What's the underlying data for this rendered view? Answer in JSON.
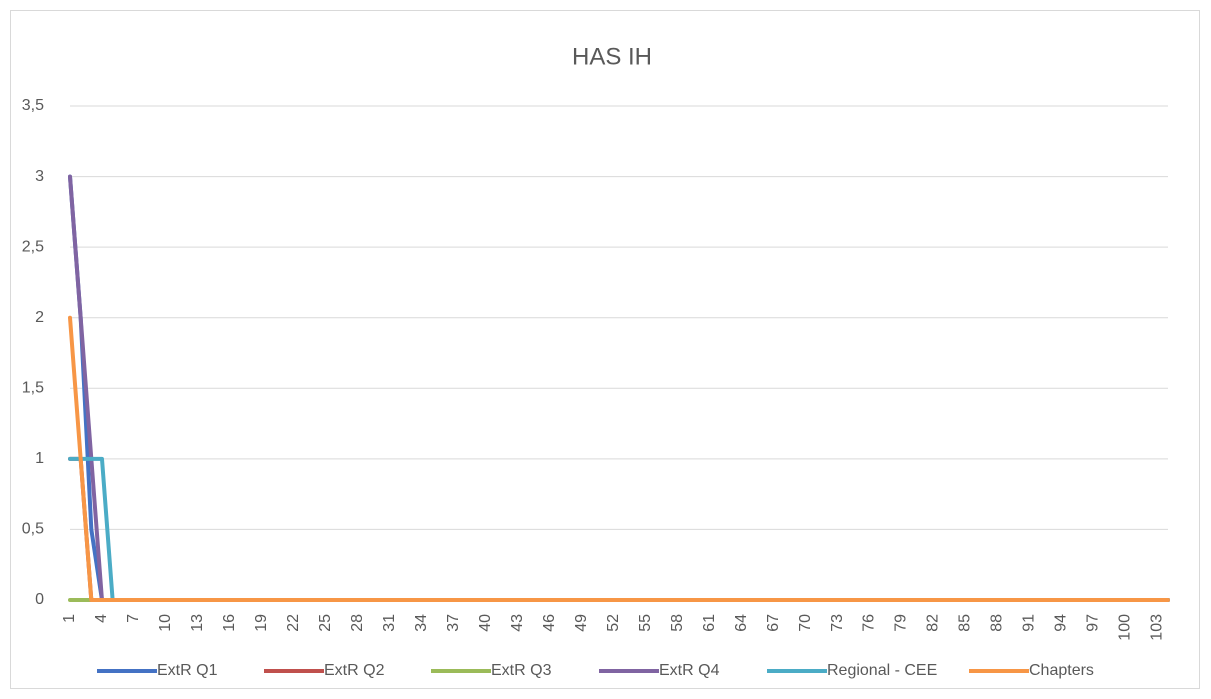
{
  "chart_data": {
    "type": "line",
    "title": "HAS IH",
    "categories": [
      "1",
      null,
      null,
      "4",
      null,
      null,
      "7",
      null,
      null,
      "10",
      null,
      null,
      "13",
      null,
      null,
      "16",
      null,
      null,
      "19",
      null,
      null,
      "22",
      null,
      null,
      "25",
      null,
      null,
      "28",
      null,
      null,
      "31",
      null,
      null,
      "34",
      null,
      null,
      "37",
      null,
      null,
      "40",
      null,
      null,
      "43",
      null,
      null,
      "46",
      null,
      null,
      "49",
      null,
      null,
      "52",
      null,
      null,
      "55",
      null,
      null,
      "58",
      null,
      null,
      "61",
      null,
      null,
      "64",
      null,
      null,
      "67",
      null,
      null,
      "70",
      null,
      null,
      "73",
      null,
      null,
      "76",
      null,
      null,
      "79",
      null,
      null,
      "82",
      null,
      null,
      "85",
      null,
      null,
      "88",
      null,
      null,
      "91",
      null,
      null,
      "94",
      null,
      null,
      "97",
      null,
      null,
      "100",
      null,
      null,
      "103",
      null
    ],
    "series": [
      {
        "name": "ExtR Q1",
        "color": "#4472c4",
        "values": [
          3,
          2,
          0.5,
          0,
          0,
          0,
          0,
          0,
          0,
          0,
          0,
          0,
          0,
          0,
          0,
          0,
          0,
          0,
          0,
          0,
          0,
          0,
          0,
          0,
          0,
          0,
          0,
          0,
          0,
          0,
          0,
          0,
          0,
          0,
          0,
          0,
          0,
          0,
          0,
          0,
          0,
          0,
          0,
          0,
          0,
          0,
          0,
          0,
          0,
          0,
          0,
          0,
          0,
          0,
          0,
          0,
          0,
          0,
          0,
          0,
          0,
          0,
          0,
          0,
          0,
          0,
          0,
          0,
          0,
          0,
          0,
          0,
          0,
          0,
          0,
          0,
          0,
          0,
          0,
          0,
          0,
          0,
          0,
          0,
          0,
          0,
          0,
          0,
          0,
          0,
          0,
          0,
          0,
          0,
          0,
          0,
          0,
          0,
          0,
          0,
          0,
          0,
          0,
          0
        ]
      },
      {
        "name": "ExtR Q2",
        "color": "#c0504d",
        "values": [
          1,
          1,
          0,
          0,
          0,
          0,
          0,
          0,
          0,
          0,
          0,
          0,
          0,
          0,
          0,
          0,
          0,
          0,
          0,
          0,
          0,
          0,
          0,
          0,
          0,
          0,
          0,
          0,
          0,
          0,
          0,
          0,
          0,
          0,
          0,
          0,
          0,
          0,
          0,
          0,
          0,
          0,
          0,
          0,
          0,
          0,
          0,
          0,
          0,
          0,
          0,
          0,
          0,
          0,
          0,
          0,
          0,
          0,
          0,
          0,
          0,
          0,
          0,
          0,
          0,
          0,
          0,
          0,
          0,
          0,
          0,
          0,
          0,
          0,
          0,
          0,
          0,
          0,
          0,
          0,
          0,
          0,
          0,
          0,
          0,
          0,
          0,
          0,
          0,
          0,
          0,
          0,
          0,
          0,
          0,
          0,
          0,
          0,
          0,
          0,
          0,
          0,
          0,
          0
        ]
      },
      {
        "name": "ExtR Q3",
        "color": "#9bbb59",
        "values": [
          0,
          0,
          0,
          0,
          0,
          0,
          0,
          0,
          0,
          0,
          0,
          0,
          0,
          0,
          0,
          0,
          0,
          0,
          0,
          0,
          0,
          0,
          0,
          0,
          0,
          0,
          0,
          0,
          0,
          0,
          0,
          0,
          0,
          0,
          0,
          0,
          0,
          0,
          0,
          0,
          0,
          0,
          0,
          0,
          0,
          0,
          0,
          0,
          0,
          0,
          0,
          0,
          0,
          0,
          0,
          0,
          0,
          0,
          0,
          0,
          0,
          0,
          0,
          0,
          0,
          0,
          0,
          0,
          0,
          0,
          0,
          0,
          0,
          0,
          0,
          0,
          0,
          0,
          0,
          0,
          0,
          0,
          0,
          0,
          0,
          0,
          0,
          0,
          0,
          0,
          0,
          0,
          0,
          0,
          0,
          0,
          0,
          0,
          0,
          0,
          0,
          0,
          0,
          0
        ]
      },
      {
        "name": "ExtR Q4",
        "color": "#8064a2",
        "values": [
          3,
          2,
          1,
          0,
          0,
          0,
          0,
          0,
          0,
          0,
          0,
          0,
          0,
          0,
          0,
          0,
          0,
          0,
          0,
          0,
          0,
          0,
          0,
          0,
          0,
          0,
          0,
          0,
          0,
          0,
          0,
          0,
          0,
          0,
          0,
          0,
          0,
          0,
          0,
          0,
          0,
          0,
          0,
          0,
          0,
          0,
          0,
          0,
          0,
          0,
          0,
          0,
          0,
          0,
          0,
          0,
          0,
          0,
          0,
          0,
          0,
          0,
          0,
          0,
          0,
          0,
          0,
          0,
          0,
          0,
          0,
          0,
          0,
          0,
          0,
          0,
          0,
          0,
          0,
          0,
          0,
          0,
          0,
          0,
          0,
          0,
          0,
          0,
          0,
          0,
          0,
          0,
          0,
          0,
          0,
          0,
          0,
          0,
          0,
          0,
          0,
          0,
          0,
          0
        ]
      },
      {
        "name": "Regional - CEE",
        "color": "#4bacc6",
        "values": [
          1,
          1,
          1,
          1,
          0,
          0,
          0,
          0,
          0,
          0,
          0,
          0,
          0,
          0,
          0,
          0,
          0,
          0,
          0,
          0,
          0,
          0,
          0,
          0,
          0,
          0,
          0,
          0,
          0,
          0,
          0,
          0,
          0,
          0,
          0,
          0,
          0,
          0,
          0,
          0,
          0,
          0,
          0,
          0,
          0,
          0,
          0,
          0,
          0,
          0,
          0,
          0,
          0,
          0,
          0,
          0,
          0,
          0,
          0,
          0,
          0,
          0,
          0,
          0,
          0,
          0,
          0,
          0,
          0,
          0,
          0,
          0,
          0,
          0,
          0,
          0,
          0,
          0,
          0,
          0,
          0,
          0,
          0,
          0,
          0,
          0,
          0,
          0,
          0,
          0,
          0,
          0,
          0,
          0,
          0,
          0,
          0,
          0,
          0,
          0,
          0,
          0,
          0,
          0
        ]
      },
      {
        "name": "Chapters",
        "color": "#f79646",
        "values": [
          2,
          1,
          0,
          0,
          0,
          0,
          0,
          0,
          0,
          0,
          0,
          0,
          0,
          0,
          0,
          0,
          0,
          0,
          0,
          0,
          0,
          0,
          0,
          0,
          0,
          0,
          0,
          0,
          0,
          0,
          0,
          0,
          0,
          0,
          0,
          0,
          0,
          0,
          0,
          0,
          0,
          0,
          0,
          0,
          0,
          0,
          0,
          0,
          0,
          0,
          0,
          0,
          0,
          0,
          0,
          0,
          0,
          0,
          0,
          0,
          0,
          0,
          0,
          0,
          0,
          0,
          0,
          0,
          0,
          0,
          0,
          0,
          0,
          0,
          0,
          0,
          0,
          0,
          0,
          0,
          0,
          0,
          0,
          0,
          0,
          0,
          0,
          0,
          0,
          0,
          0,
          0,
          0,
          0,
          0,
          0,
          0,
          0,
          0,
          0,
          0,
          0,
          0,
          0
        ]
      }
    ],
    "ylim": [
      0,
      3.5
    ],
    "yticks": [
      0,
      {
        "value": 0.5,
        "label": "0,5"
      },
      1,
      {
        "value": 1.5,
        "label": "1,5"
      },
      2,
      {
        "value": 2.5,
        "label": "2,5"
      },
      3,
      {
        "value": 3.5,
        "label": "3,5"
      }
    ],
    "grid": true,
    "legend": "bottom"
  }
}
